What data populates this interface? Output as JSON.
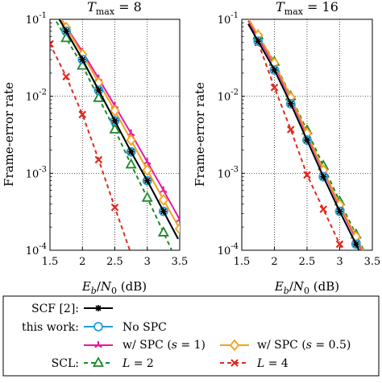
{
  "colors": {
    "SCF": "#000000",
    "no_spc": "#1f9fd9",
    "spc_s1": "#e8199e",
    "spc_s05": "#f5a11c",
    "scl_l2": "#1a8a2a",
    "scl_l4": "#e0281e"
  },
  "chart_data": [
    {
      "type": "line",
      "title": "T_max = 8",
      "xlabel": "E_b/N_0 (dB)",
      "ylabel": "Frame-error rate",
      "xlim": [
        1.5,
        3.5
      ],
      "ylim": [
        0.0001,
        0.1
      ],
      "yscale": "log",
      "grid": true,
      "x_ticks": [
        "1.5",
        "2",
        "2.5",
        "3",
        "3.5"
      ],
      "y_ticks": [
        "10^-4",
        "10^-3",
        "10^-2",
        "10^-1"
      ],
      "series": [
        {
          "name": "SCF [2]",
          "marker": "star",
          "x": [
            1.75,
            2.0,
            2.25,
            2.5,
            2.75,
            3.0,
            3.25
          ],
          "y": [
            0.07,
            0.03,
            0.012,
            0.0048,
            0.0019,
            0.0008,
            0.00032
          ]
        },
        {
          "name": "No SPC",
          "marker": "circle",
          "x": [
            1.75,
            2.0,
            2.25,
            2.5,
            2.75,
            3.0,
            3.25
          ],
          "y": [
            0.07,
            0.03,
            0.012,
            0.0048,
            0.0019,
            0.0008,
            0.00032
          ]
        },
        {
          "name": "w/ SPC (s = 1)",
          "marker": "tri-star",
          "x": [
            1.75,
            2.0,
            2.25,
            2.5,
            2.75,
            3.0,
            3.25,
            3.5
          ],
          "y": [
            0.08,
            0.038,
            0.017,
            0.0075,
            0.0033,
            0.0014,
            0.0006,
            0.00025
          ]
        },
        {
          "name": "w/ SPC (s = 0.5)",
          "marker": "diamond",
          "x": [
            1.75,
            2.0,
            2.25,
            2.5,
            2.75,
            3.0,
            3.25,
            3.5
          ],
          "y": [
            0.078,
            0.035,
            0.015,
            0.0065,
            0.0027,
            0.0011,
            0.00045,
            0.00019
          ]
        },
        {
          "name": "L = 2",
          "marker": "triangle",
          "x": [
            1.75,
            2.0,
            2.25,
            2.5,
            2.75,
            3.0,
            3.25
          ],
          "y": [
            0.057,
            0.025,
            0.0095,
            0.0037,
            0.0013,
            0.00048,
            0.00017
          ]
        },
        {
          "name": "L = 4",
          "marker": "x",
          "x": [
            1.5,
            1.75,
            2.0,
            2.25,
            2.5,
            2.75
          ],
          "y": [
            0.048,
            0.018,
            0.0058,
            0.0015,
            0.00036,
            9e-05
          ]
        }
      ]
    },
    {
      "type": "line",
      "title": "T_max = 16",
      "xlabel": "E_b/N_0 (dB)",
      "ylabel": "Frame-error rate",
      "xlim": [
        1.5,
        3.5
      ],
      "ylim": [
        0.0001,
        0.1
      ],
      "yscale": "log",
      "grid": true,
      "x_ticks": [
        "1.5",
        "2",
        "2.5",
        "3",
        "3.5"
      ],
      "y_ticks": [
        "10^-4",
        "10^-3",
        "10^-2",
        "10^-1"
      ],
      "series": [
        {
          "name": "SCF [2]",
          "marker": "star",
          "x": [
            1.75,
            2.0,
            2.25,
            2.5,
            2.75,
            3.0,
            3.25
          ],
          "y": [
            0.052,
            0.022,
            0.008,
            0.0027,
            0.0009,
            0.00032,
            0.00012
          ]
        },
        {
          "name": "No SPC",
          "marker": "circle",
          "x": [
            1.75,
            2.0,
            2.25,
            2.5,
            2.75,
            3.0,
            3.25
          ],
          "y": [
            0.052,
            0.022,
            0.008,
            0.0027,
            0.0009,
            0.00032,
            0.00012
          ]
        },
        {
          "name": "w/ SPC (s = 1)",
          "marker": "tri-star",
          "x": [
            1.75,
            2.0,
            2.25,
            2.5,
            2.75,
            3.0,
            3.25
          ],
          "y": [
            0.058,
            0.025,
            0.0092,
            0.0031,
            0.00105,
            0.00037,
            0.00014
          ]
        },
        {
          "name": "w/ SPC (s = 0.5)",
          "marker": "diamond",
          "x": [
            1.75,
            2.0,
            2.25,
            2.5,
            2.75,
            3.0,
            3.25
          ],
          "y": [
            0.062,
            0.027,
            0.0097,
            0.0033,
            0.0011,
            0.00039,
            0.00015
          ]
        },
        {
          "name": "L = 2",
          "marker": "triangle",
          "x": [
            1.75,
            2.0,
            2.25,
            2.5,
            2.75,
            3.0,
            3.25
          ],
          "y": [
            0.062,
            0.028,
            0.01,
            0.0036,
            0.00125,
            0.00043,
            0.00016
          ]
        },
        {
          "name": "L = 4",
          "marker": "x",
          "x": [
            1.75,
            2.0,
            2.25,
            2.5,
            2.75,
            3.0
          ],
          "y": [
            0.05,
            0.013,
            0.0037,
            0.00095,
            0.00034,
            0.00012
          ]
        }
      ]
    }
  ],
  "legend": {
    "row1_label": "SCF [2]:",
    "row2_label": "this work:",
    "row4_label": "SCL:",
    "entries": {
      "scf": "",
      "no_spc": "No SPC",
      "spc_s1": "w/ SPC (s = 1)",
      "spc_s05": "w/ SPC (s = 0.5)",
      "scl_l2": "L = 2",
      "scl_l4": "L = 4"
    }
  }
}
